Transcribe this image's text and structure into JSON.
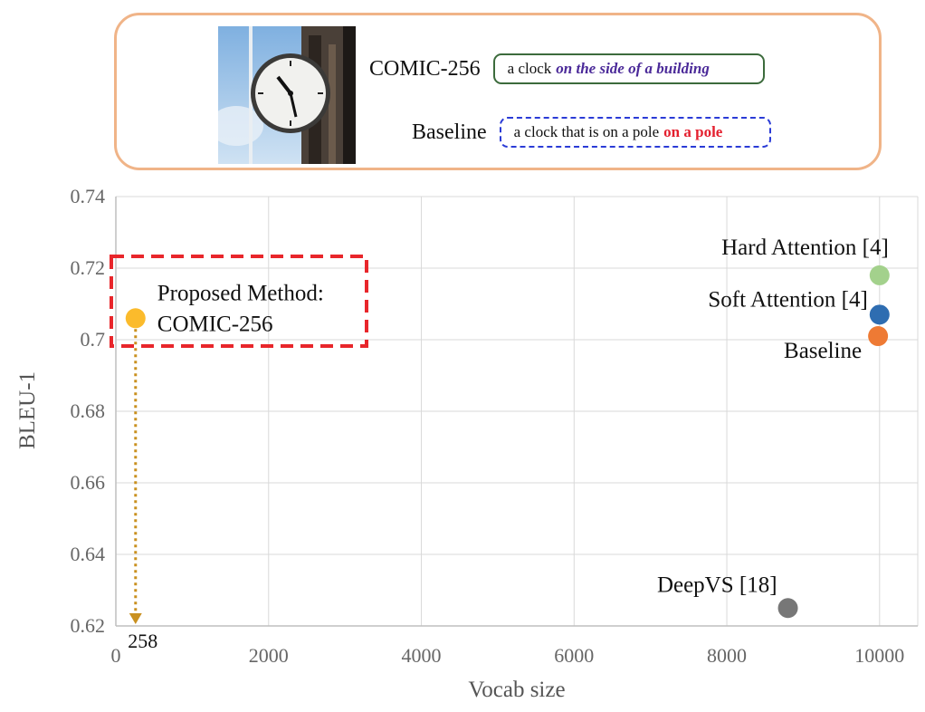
{
  "example": {
    "comic_label": "COMIC-256",
    "comic_caption_plain": "a clock",
    "comic_caption_highlight": "on the side of a building",
    "baseline_label": "Baseline",
    "baseline_caption_plain": "a clock that is on a pole",
    "baseline_caption_highlight": "on a pole"
  },
  "chart_data": {
    "type": "scatter",
    "xlabel": "Vocab size",
    "ylabel": "BLEU-1",
    "xlim": [
      0,
      10500
    ],
    "ylim": [
      0.62,
      0.74
    ],
    "x_ticks": [
      0,
      2000,
      4000,
      6000,
      8000,
      10000
    ],
    "y_ticks": [
      0.62,
      0.64,
      0.66,
      0.68,
      0.7,
      0.72,
      0.74
    ],
    "x_tick_labels": [
      "0",
      "2000",
      "4000",
      "6000",
      "8000",
      "10000"
    ],
    "y_tick_labels": [
      "0.62",
      "0.64",
      "0.66",
      "0.68",
      "0.7",
      "0.72",
      "0.74"
    ],
    "grid": true,
    "points": [
      {
        "label": "Proposed Method:",
        "label2": "COMIC-256",
        "x": 258,
        "y": 0.706,
        "color": "#fbbb2c"
      },
      {
        "label": "Hard Attention [4]",
        "x": 10000,
        "y": 0.718,
        "color": "#a3d18c"
      },
      {
        "label": "Soft Attention [4]",
        "x": 10000,
        "y": 0.707,
        "color": "#2e6db1"
      },
      {
        "label": "Baseline",
        "x": 9980,
        "y": 0.701,
        "color": "#ee7a34"
      },
      {
        "label": "DeepVS [18]",
        "x": 8800,
        "y": 0.625,
        "color": "#777777"
      }
    ],
    "annotation": {
      "text": "258",
      "x": 258,
      "arrow_color": "#c9901f",
      "box_color": "#e8262b"
    }
  }
}
